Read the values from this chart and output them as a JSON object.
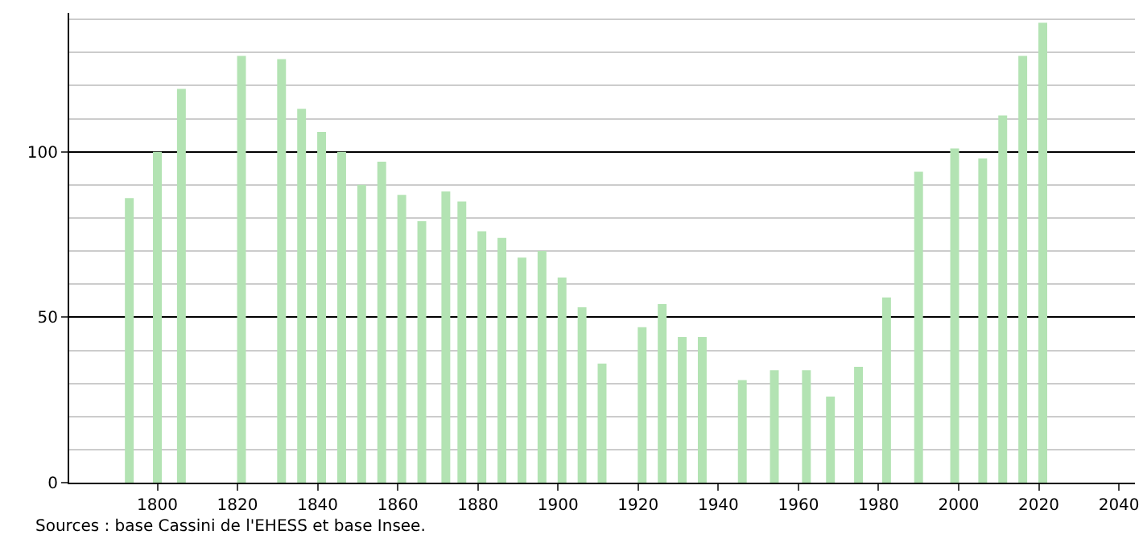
{
  "chart_data": {
    "type": "bar",
    "x": [
      1793,
      1800,
      1806,
      1821,
      1831,
      1836,
      1841,
      1846,
      1851,
      1856,
      1861,
      1866,
      1872,
      1876,
      1881,
      1886,
      1891,
      1896,
      1901,
      1906,
      1911,
      1921,
      1926,
      1931,
      1936,
      1946,
      1954,
      1962,
      1968,
      1975,
      1982,
      1990,
      1999,
      2006,
      2011,
      2016,
      2021
    ],
    "values": [
      86,
      100,
      119,
      129,
      128,
      113,
      106,
      100,
      90,
      97,
      87,
      79,
      88,
      85,
      76,
      74,
      68,
      70,
      62,
      53,
      36,
      47,
      54,
      44,
      44,
      31,
      34,
      34,
      26,
      35,
      56,
      94,
      101,
      98,
      111,
      129,
      139
    ],
    "color": "#b3e3b3",
    "xlim": [
      1778,
      2044
    ],
    "xticks": [
      1800,
      1820,
      1840,
      1860,
      1880,
      1900,
      1920,
      1940,
      1960,
      1980,
      2000,
      2020,
      2040
    ],
    "ylim": [
      0,
      142
    ],
    "yticks": [
      0,
      {
        "value": 10,
        "label": null
      },
      {
        "value": 20,
        "label": null
      },
      {
        "value": 30,
        "label": null
      },
      {
        "value": 40,
        "label": null
      },
      50,
      {
        "value": 60,
        "label": null
      },
      {
        "value": 70,
        "label": null
      },
      {
        "value": 80,
        "label": null
      },
      {
        "value": 90,
        "label": null
      },
      100,
      {
        "value": 110,
        "label": null
      },
      {
        "value": 120,
        "label": null
      },
      {
        "value": 130,
        "label": null
      },
      {
        "value": 140,
        "label": null
      }
    ],
    "grid": "y",
    "annotations": [
      "Sources : base Cassini de l'EHESS et base Insee."
    ]
  }
}
